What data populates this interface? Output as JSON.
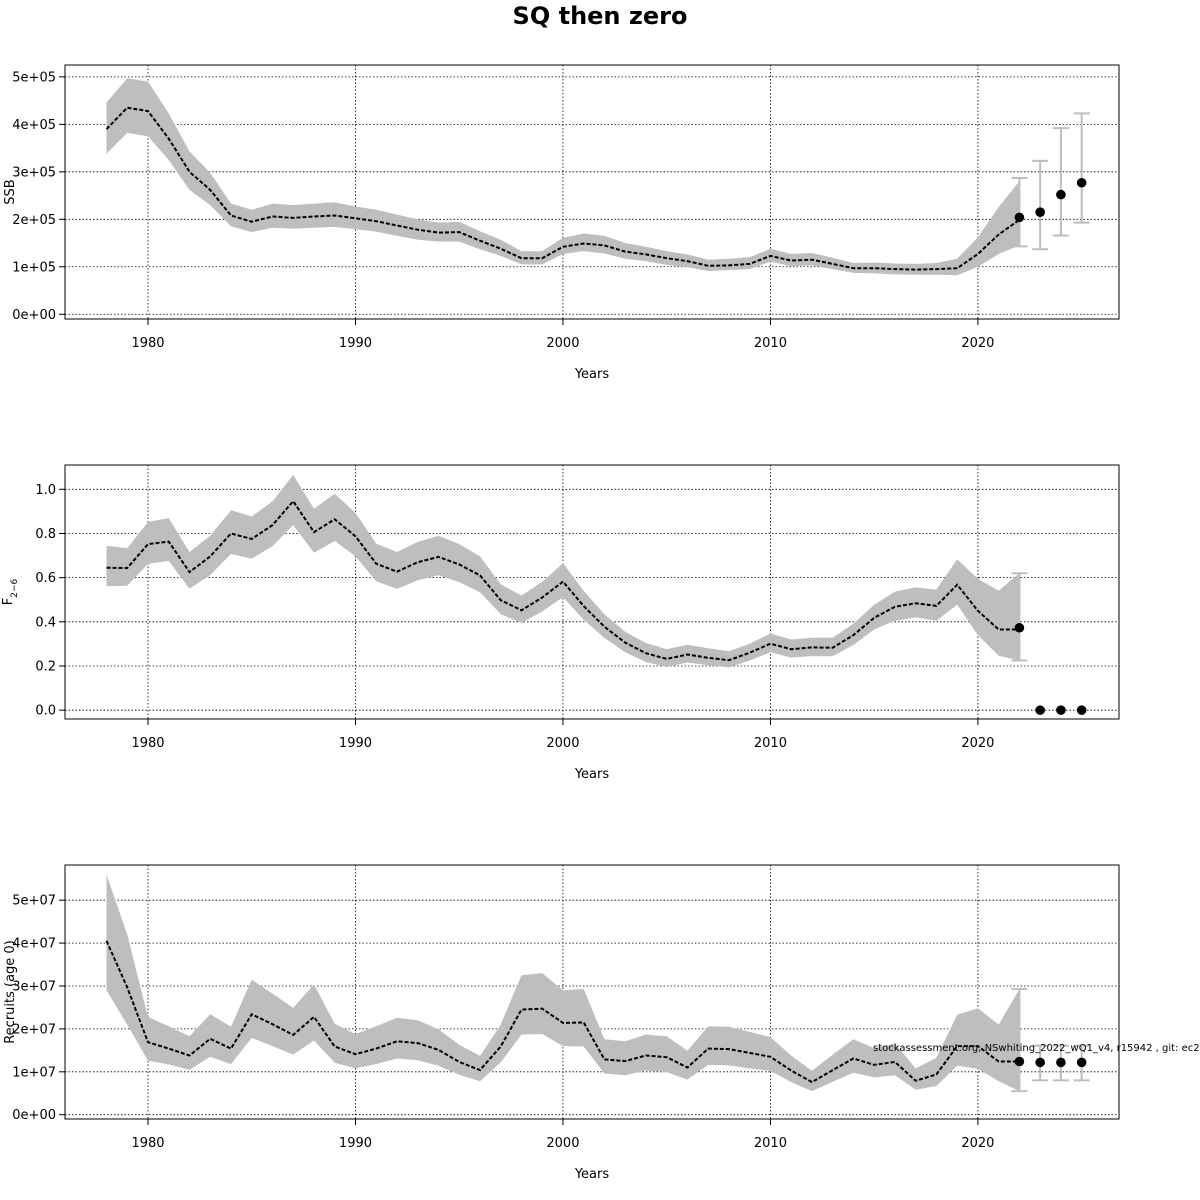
{
  "title": "SQ then zero",
  "footnote": "stockassessment.org, NSwhiting_2022_wQ1_v4, r15942 , git: ec2c2",
  "colors": {
    "band": "#bebebe",
    "line": "#000000",
    "errorbar": "#bebebe",
    "grid": "#000000"
  },
  "chart_data": [
    {
      "type": "line",
      "name": "ssb-panel",
      "title": "",
      "xlabel": "Years",
      "ylabel": "SSB",
      "xlim": [
        1976,
        2026.8
      ],
      "ylim": [
        -10000,
        525000
      ],
      "xticks": [
        1980,
        1990,
        2000,
        2010,
        2020
      ],
      "xtick_labels": [
        "1980",
        "1990",
        "2000",
        "2010",
        "2020"
      ],
      "yticks": [
        0,
        100000,
        200000,
        300000,
        400000,
        500000
      ],
      "ytick_labels": [
        "0e+00",
        "1e+05",
        "2e+05",
        "3e+05",
        "4e+05",
        "5e+05"
      ],
      "grid": true,
      "x": [
        1978,
        1979,
        1980,
        1981,
        1982,
        1983,
        1984,
        1985,
        1986,
        1987,
        1988,
        1989,
        1990,
        1991,
        1992,
        1993,
        1994,
        1995,
        1996,
        1997,
        1998,
        1999,
        2000,
        2001,
        2002,
        2003,
        2004,
        2005,
        2006,
        2007,
        2008,
        2009,
        2010,
        2011,
        2012,
        2013,
        2014,
        2015,
        2016,
        2017,
        2018,
        2019,
        2020,
        2021,
        2022
      ],
      "estimate": [
        390000,
        435000,
        428000,
        370000,
        300000,
        262000,
        208000,
        195000,
        206000,
        203000,
        206000,
        208000,
        202000,
        196000,
        187000,
        178000,
        172000,
        173000,
        155000,
        138000,
        118000,
        118000,
        142000,
        149000,
        145000,
        132000,
        126000,
        118000,
        112000,
        102000,
        103000,
        106000,
        123000,
        113000,
        115000,
        106000,
        97000,
        97000,
        95000,
        94000,
        95000,
        97000,
        127000,
        168000,
        199000
      ],
      "lower": [
        338000,
        382000,
        375000,
        325000,
        262000,
        230000,
        185000,
        173000,
        182000,
        180000,
        182000,
        184000,
        179000,
        174000,
        165000,
        157000,
        153000,
        153000,
        137000,
        123000,
        105000,
        105000,
        127000,
        133000,
        128000,
        117000,
        112000,
        104000,
        99000,
        91000,
        93000,
        95000,
        111000,
        101000,
        103000,
        95000,
        87000,
        86000,
        84000,
        83000,
        83000,
        82000,
        100000,
        127000,
        145000
      ],
      "upper": [
        446000,
        497000,
        490000,
        423000,
        343000,
        298000,
        233000,
        220000,
        233000,
        230000,
        233000,
        236000,
        227000,
        220000,
        210000,
        200000,
        193000,
        195000,
        175000,
        157000,
        133000,
        133000,
        161000,
        170000,
        165000,
        150000,
        142000,
        133000,
        126000,
        115000,
        117000,
        120000,
        138000,
        127000,
        129000,
        119000,
        108000,
        109000,
        107000,
        106000,
        108000,
        117000,
        162000,
        226000,
        280000
      ],
      "forecast": [
        {
          "year": 2022,
          "median": 204000,
          "low": 143000,
          "high": 287000
        },
        {
          "year": 2023,
          "median": 215000,
          "low": 137000,
          "high": 323000
        },
        {
          "year": 2024,
          "median": 252000,
          "low": 166000,
          "high": 392000
        },
        {
          "year": 2025,
          "median": 277000,
          "low": 193000,
          "high": 423000
        }
      ]
    },
    {
      "type": "line",
      "name": "f-panel",
      "title": "",
      "xlabel": "Years",
      "ylabel": "F",
      "ylabel_sub": "2−6",
      "xlim": [
        1976,
        2026.8
      ],
      "ylim": [
        -0.04,
        1.11
      ],
      "xticks": [
        1980,
        1990,
        2000,
        2010,
        2020
      ],
      "xtick_labels": [
        "1980",
        "1990",
        "2000",
        "2010",
        "2020"
      ],
      "yticks": [
        0,
        0.2,
        0.4,
        0.6,
        0.8,
        1.0
      ],
      "ytick_labels": [
        "0.0",
        "0.2",
        "0.4",
        "0.6",
        "0.8",
        "1.0"
      ],
      "grid": true,
      "x": [
        1978,
        1979,
        1980,
        1981,
        1982,
        1983,
        1984,
        1985,
        1986,
        1987,
        1988,
        1989,
        1990,
        1991,
        1992,
        1993,
        1994,
        1995,
        1996,
        1997,
        1998,
        1999,
        2000,
        2001,
        2002,
        2003,
        2004,
        2005,
        2006,
        2007,
        2008,
        2009,
        2010,
        2011,
        2012,
        2013,
        2014,
        2015,
        2016,
        2017,
        2018,
        2019,
        2020,
        2021,
        2022
      ],
      "estimate": [
        0.645,
        0.643,
        0.752,
        0.763,
        0.625,
        0.696,
        0.8,
        0.775,
        0.838,
        0.946,
        0.806,
        0.864,
        0.787,
        0.663,
        0.627,
        0.67,
        0.694,
        0.66,
        0.61,
        0.498,
        0.452,
        0.51,
        0.582,
        0.471,
        0.378,
        0.306,
        0.258,
        0.232,
        0.252,
        0.237,
        0.226,
        0.26,
        0.301,
        0.276,
        0.284,
        0.283,
        0.34,
        0.418,
        0.468,
        0.484,
        0.472,
        0.568,
        0.45,
        0.365,
        0.365
      ],
      "lower": [
        0.561,
        0.563,
        0.663,
        0.676,
        0.55,
        0.612,
        0.707,
        0.686,
        0.743,
        0.838,
        0.713,
        0.766,
        0.697,
        0.584,
        0.549,
        0.588,
        0.611,
        0.58,
        0.534,
        0.435,
        0.394,
        0.447,
        0.511,
        0.409,
        0.327,
        0.262,
        0.218,
        0.195,
        0.216,
        0.203,
        0.193,
        0.225,
        0.262,
        0.238,
        0.245,
        0.244,
        0.295,
        0.365,
        0.405,
        0.42,
        0.405,
        0.478,
        0.34,
        0.246,
        0.225
      ],
      "upper": [
        0.744,
        0.733,
        0.852,
        0.87,
        0.716,
        0.79,
        0.905,
        0.877,
        0.945,
        1.065,
        0.912,
        0.98,
        0.893,
        0.754,
        0.716,
        0.762,
        0.79,
        0.752,
        0.696,
        0.57,
        0.519,
        0.581,
        0.665,
        0.54,
        0.434,
        0.355,
        0.304,
        0.276,
        0.296,
        0.28,
        0.267,
        0.301,
        0.347,
        0.32,
        0.328,
        0.328,
        0.391,
        0.477,
        0.537,
        0.556,
        0.546,
        0.683,
        0.595,
        0.541,
        0.62
      ],
      "forecast": [
        {
          "year": 2022,
          "median": 0.373,
          "low": 0.225,
          "high": 0.62
        },
        {
          "year": 2023,
          "median": 0.0,
          "low": 0.0,
          "high": 0.0
        },
        {
          "year": 2024,
          "median": 0.0,
          "low": 0.0,
          "high": 0.0
        },
        {
          "year": 2025,
          "median": 0.0,
          "low": 0.0,
          "high": 0.0
        }
      ]
    },
    {
      "type": "line",
      "name": "recruits-panel",
      "title": "",
      "xlabel": "Years",
      "ylabel": "Recruits (age 0)",
      "xlim": [
        1976,
        2026.8
      ],
      "ylim": [
        -1000000,
        58200000
      ],
      "xticks": [
        1980,
        1990,
        2000,
        2010,
        2020
      ],
      "xtick_labels": [
        "1980",
        "1990",
        "2000",
        "2010",
        "2020"
      ],
      "yticks": [
        0,
        10000000,
        20000000,
        30000000,
        40000000,
        50000000
      ],
      "ytick_labels": [
        "0e+00",
        "1e+07",
        "2e+07",
        "3e+07",
        "4e+07",
        "5e+07"
      ],
      "grid": true,
      "x": [
        1978,
        1979,
        1980,
        1981,
        1982,
        1983,
        1984,
        1985,
        1986,
        1987,
        1988,
        1989,
        1990,
        1991,
        1992,
        1993,
        1994,
        1995,
        1996,
        1997,
        1998,
        1999,
        2000,
        2001,
        2002,
        2003,
        2004,
        2005,
        2006,
        2007,
        2008,
        2009,
        2010,
        2011,
        2012,
        2013,
        2014,
        2015,
        2016,
        2017,
        2018,
        2019,
        2020,
        2021,
        2022
      ],
      "estimate": [
        40500000,
        29700000,
        16900000,
        15400000,
        13800000,
        17700000,
        15400000,
        23400000,
        21100000,
        18600000,
        22800000,
        15900000,
        14100000,
        15400000,
        17100000,
        16700000,
        15100000,
        12300000,
        10400000,
        15900000,
        24500000,
        24700000,
        21400000,
        21500000,
        12900000,
        12500000,
        13800000,
        13400000,
        11000000,
        15400000,
        15300000,
        14400000,
        13500000,
        10300000,
        7600000,
        10400000,
        13100000,
        11600000,
        12300000,
        7900000,
        9400000,
        16000000,
        16000000,
        12400000,
        12400000
      ],
      "lower": [
        29000000,
        21000000,
        12600000,
        11700000,
        10500000,
        13500000,
        11800000,
        17900000,
        16000000,
        14000000,
        17300000,
        12100000,
        10800000,
        11800000,
        13100000,
        12700000,
        11400000,
        9300000,
        7800000,
        12200000,
        18700000,
        18800000,
        16000000,
        15900000,
        9600000,
        9200000,
        10300000,
        9900000,
        8200000,
        11600000,
        11500000,
        10800000,
        10200000,
        7600000,
        5500000,
        7700000,
        9800000,
        8700000,
        9200000,
        5800000,
        6700000,
        11400000,
        10700000,
        7800000,
        5500000
      ],
      "upper": [
        56000000,
        42000000,
        22800000,
        20600000,
        18300000,
        23400000,
        20500000,
        31500000,
        28200000,
        24900000,
        30400000,
        21200000,
        18800000,
        20600000,
        22600000,
        22000000,
        19900000,
        16300000,
        13700000,
        21000000,
        32500000,
        33000000,
        29000000,
        29300000,
        17600000,
        17100000,
        18700000,
        18300000,
        14900000,
        20600000,
        20500000,
        19300000,
        18100000,
        13800000,
        10200000,
        14000000,
        17600000,
        15500000,
        16600000,
        10800000,
        13300000,
        23300000,
        24800000,
        21000000,
        29300000
      ],
      "forecast": [
        {
          "year": 2022,
          "median": 12400000,
          "low": 5500000,
          "high": 29300000
        },
        {
          "year": 2023,
          "median": 12200000,
          "low": 8000000,
          "high": 16100000
        },
        {
          "year": 2024,
          "median": 12200000,
          "low": 8000000,
          "high": 16100000
        },
        {
          "year": 2025,
          "median": 12200000,
          "low": 8000000,
          "high": 16100000
        }
      ]
    }
  ]
}
